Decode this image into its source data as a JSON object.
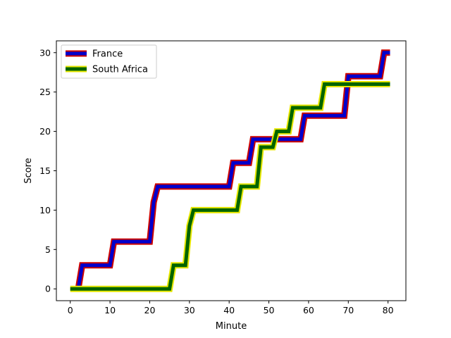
{
  "chart_data": {
    "type": "line",
    "xlabel": "Minute",
    "ylabel": "Score",
    "xlim": [
      -3.5,
      84.5
    ],
    "ylim": [
      -1.5,
      31.5
    ],
    "xticks": [
      0,
      10,
      20,
      30,
      40,
      50,
      60,
      70,
      80
    ],
    "yticks": [
      0,
      5,
      10,
      15,
      20,
      25,
      30
    ],
    "legend_position": "top-left",
    "series": [
      {
        "name": "France",
        "line_color": "#0000cc",
        "edge_color": "#cc0000",
        "points": [
          [
            2,
            0
          ],
          [
            3,
            3
          ],
          [
            10,
            3
          ],
          [
            11,
            6
          ],
          [
            20,
            6
          ],
          [
            21,
            11
          ],
          [
            22,
            13
          ],
          [
            40,
            13
          ],
          [
            41,
            16
          ],
          [
            45,
            16
          ],
          [
            46,
            19
          ],
          [
            58,
            19
          ],
          [
            59,
            22
          ],
          [
            69,
            22
          ],
          [
            70,
            27
          ],
          [
            78,
            27
          ],
          [
            79,
            30
          ],
          [
            80.5,
            30
          ]
        ]
      },
      {
        "name": "South Africa",
        "line_color": "#006400",
        "edge_color": "#e6e600",
        "points": [
          [
            0,
            0
          ],
          [
            25,
            0
          ],
          [
            26,
            3
          ],
          [
            29,
            3
          ],
          [
            30,
            8
          ],
          [
            31,
            10
          ],
          [
            42,
            10
          ],
          [
            43,
            13
          ],
          [
            47,
            13
          ],
          [
            48,
            18
          ],
          [
            51,
            18
          ],
          [
            52,
            20
          ],
          [
            55,
            20
          ],
          [
            56,
            23
          ],
          [
            63,
            23
          ],
          [
            64,
            26
          ],
          [
            80.5,
            26
          ]
        ]
      }
    ]
  }
}
